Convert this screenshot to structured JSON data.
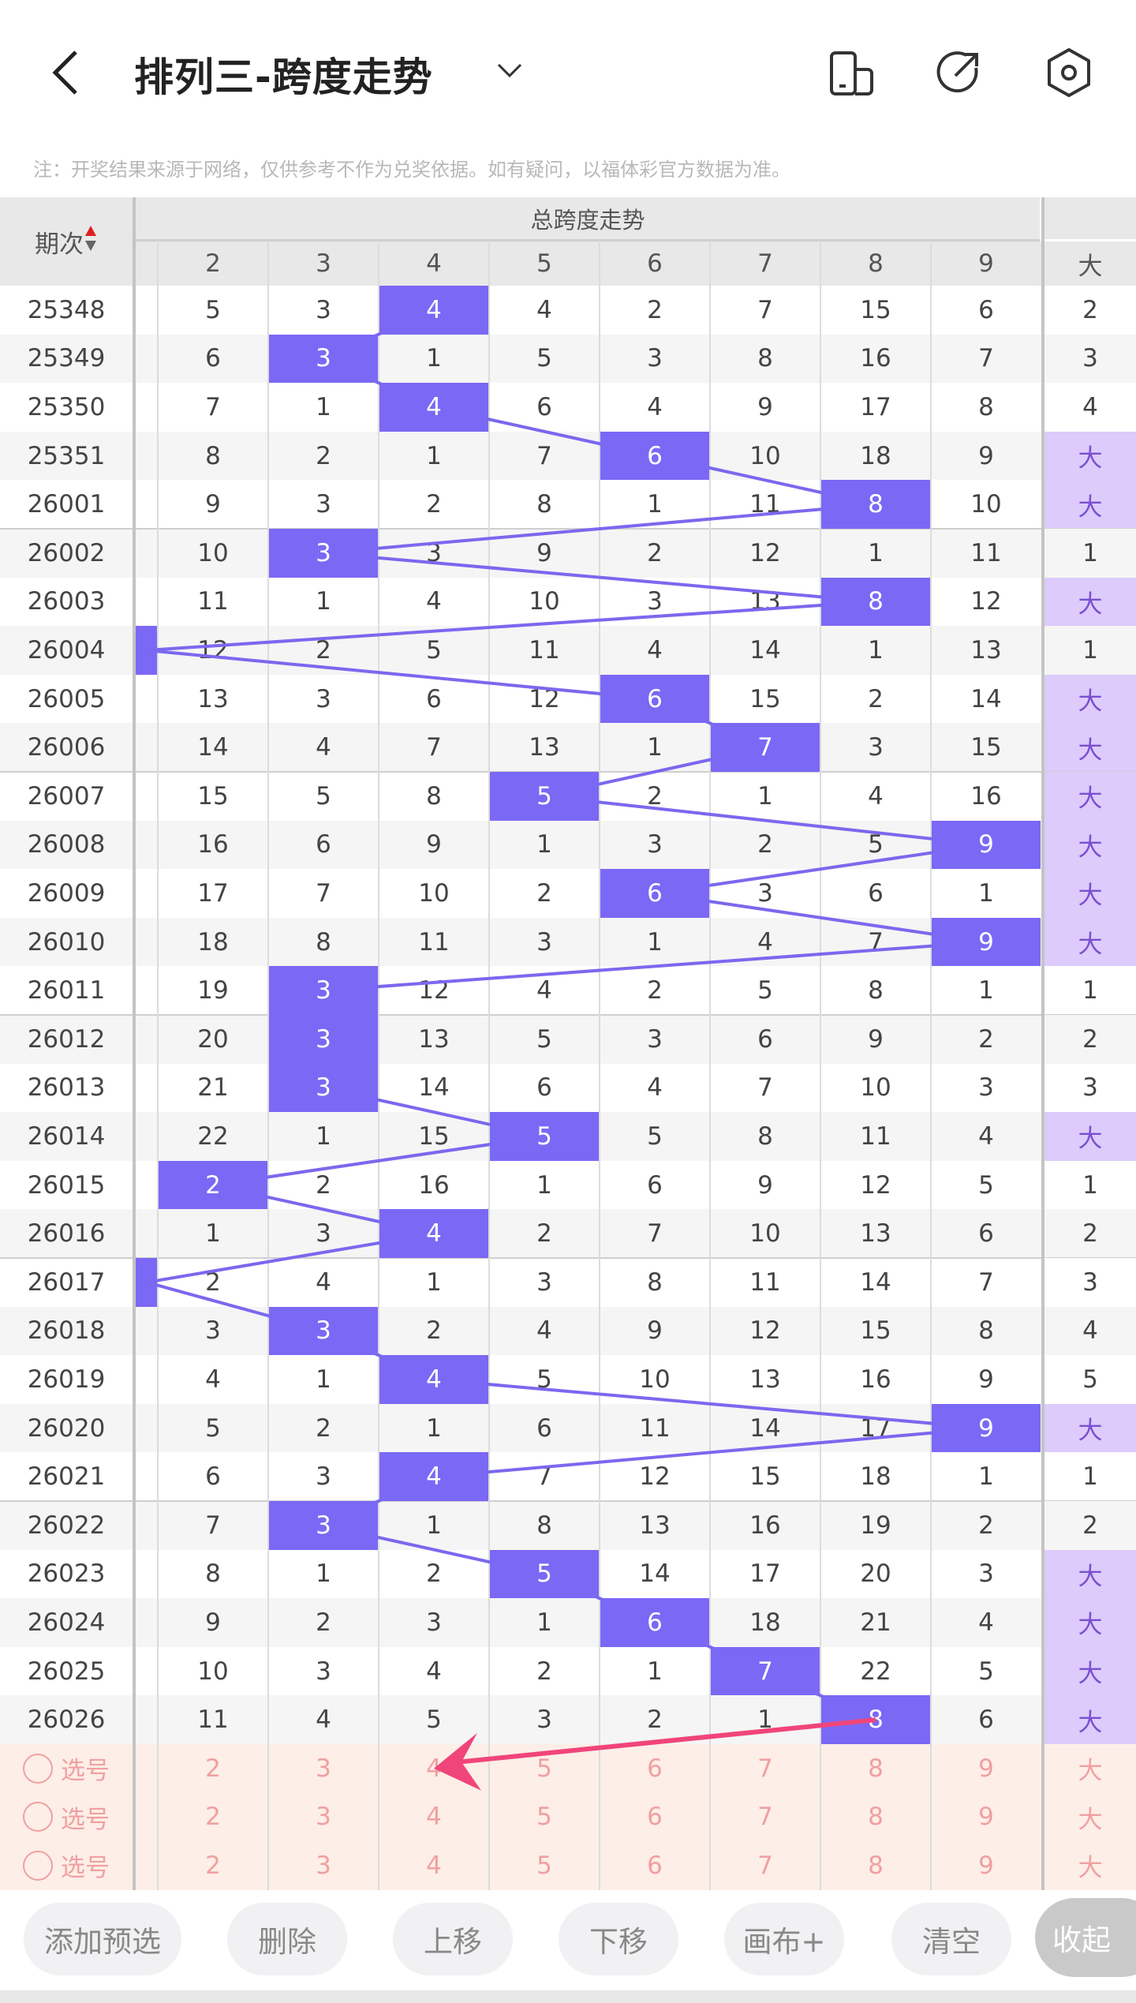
{
  "header": {
    "title": "排列三-跨度走势",
    "back_icon": "chevron-left-icon",
    "dropdown_icon": "chevron-down-icon",
    "icons": [
      "phone-layout-icon",
      "share-icon",
      "settings-icon"
    ]
  },
  "note": "注：开奖结果来源于网络，仅供参考不作为兑奖依据。如有疑问，以福体彩官方数据为准。",
  "table": {
    "issue_header": "期次",
    "group_header": "总跨度走势",
    "columns": [
      "2",
      "3",
      "4",
      "5",
      "6",
      "7",
      "8",
      "9"
    ],
    "last_column": "大",
    "colors": {
      "hit": "#7b68f5",
      "big_bg": "#dccbfb",
      "big_text": "#7b4fd0",
      "line": "#7b68ee",
      "arrow": "#f0457a"
    },
    "rows": [
      {
        "issue": "25348",
        "cells": [
          5,
          3,
          4,
          4,
          2,
          7,
          15,
          6
        ],
        "hit": 2,
        "last": "2"
      },
      {
        "issue": "25349",
        "cells": [
          6,
          3,
          1,
          5,
          3,
          8,
          16,
          7
        ],
        "hit": 1,
        "last": "3"
      },
      {
        "issue": "25350",
        "cells": [
          7,
          1,
          4,
          6,
          4,
          9,
          17,
          8
        ],
        "hit": 2,
        "last": "4"
      },
      {
        "issue": "25351",
        "cells": [
          8,
          2,
          1,
          7,
          6,
          10,
          18,
          9
        ],
        "hit": 4,
        "last": "大"
      },
      {
        "issue": "26001",
        "cells": [
          9,
          3,
          2,
          8,
          1,
          11,
          8,
          10
        ],
        "hit": 6,
        "last": "大"
      },
      {
        "issue": "26002",
        "cells": [
          10,
          3,
          3,
          9,
          2,
          12,
          1,
          11
        ],
        "hit": 1,
        "last": "1"
      },
      {
        "issue": "26003",
        "cells": [
          11,
          1,
          4,
          10,
          3,
          13,
          8,
          12
        ],
        "hit": 6,
        "last": "大"
      },
      {
        "issue": "26004",
        "cells": [
          12,
          2,
          5,
          11,
          4,
          14,
          1,
          13
        ],
        "hit": -1,
        "last": "1"
      },
      {
        "issue": "26005",
        "cells": [
          13,
          3,
          6,
          12,
          6,
          15,
          2,
          14
        ],
        "hit": 4,
        "last": "大"
      },
      {
        "issue": "26006",
        "cells": [
          14,
          4,
          7,
          13,
          1,
          7,
          3,
          15
        ],
        "hit": 5,
        "last": "大"
      },
      {
        "issue": "26007",
        "cells": [
          15,
          5,
          8,
          5,
          2,
          1,
          4,
          16
        ],
        "hit": 3,
        "last": "大"
      },
      {
        "issue": "26008",
        "cells": [
          16,
          6,
          9,
          1,
          3,
          2,
          5,
          9
        ],
        "hit": 7,
        "last": "大"
      },
      {
        "issue": "26009",
        "cells": [
          17,
          7,
          10,
          2,
          6,
          3,
          6,
          1
        ],
        "hit": 4,
        "last": "大"
      },
      {
        "issue": "26010",
        "cells": [
          18,
          8,
          11,
          3,
          1,
          4,
          7,
          9
        ],
        "hit": 7,
        "last": "大"
      },
      {
        "issue": "26011",
        "cells": [
          19,
          3,
          12,
          4,
          2,
          5,
          8,
          1
        ],
        "hit": 1,
        "last": "1"
      },
      {
        "issue": "26012",
        "cells": [
          20,
          3,
          13,
          5,
          3,
          6,
          9,
          2
        ],
        "hit": 1,
        "last": "2"
      },
      {
        "issue": "26013",
        "cells": [
          21,
          3,
          14,
          6,
          4,
          7,
          10,
          3
        ],
        "hit": 1,
        "last": "3"
      },
      {
        "issue": "26014",
        "cells": [
          22,
          1,
          15,
          5,
          5,
          8,
          11,
          4
        ],
        "hit": 3,
        "last": "大"
      },
      {
        "issue": "26015",
        "cells": [
          2,
          2,
          16,
          1,
          6,
          9,
          12,
          5
        ],
        "hit": 0,
        "last": "1"
      },
      {
        "issue": "26016",
        "cells": [
          1,
          3,
          4,
          2,
          7,
          10,
          13,
          6
        ],
        "hit": 2,
        "last": "2"
      },
      {
        "issue": "26017",
        "cells": [
          2,
          4,
          1,
          3,
          8,
          11,
          14,
          7
        ],
        "hit": -1,
        "last": "3"
      },
      {
        "issue": "26018",
        "cells": [
          3,
          3,
          2,
          4,
          9,
          12,
          15,
          8
        ],
        "hit": 1,
        "last": "4"
      },
      {
        "issue": "26019",
        "cells": [
          4,
          1,
          4,
          5,
          10,
          13,
          16,
          9
        ],
        "hit": 2,
        "last": "5"
      },
      {
        "issue": "26020",
        "cells": [
          5,
          2,
          1,
          6,
          11,
          14,
          17,
          9
        ],
        "hit": 7,
        "last": "大"
      },
      {
        "issue": "26021",
        "cells": [
          6,
          3,
          4,
          7,
          12,
          15,
          18,
          1
        ],
        "hit": 2,
        "last": "1"
      },
      {
        "issue": "26022",
        "cells": [
          7,
          3,
          1,
          8,
          13,
          16,
          19,
          2
        ],
        "hit": 1,
        "last": "2"
      },
      {
        "issue": "26023",
        "cells": [
          8,
          1,
          2,
          5,
          14,
          17,
          20,
          3
        ],
        "hit": 3,
        "last": "大"
      },
      {
        "issue": "26024",
        "cells": [
          9,
          2,
          3,
          1,
          6,
          18,
          21,
          4
        ],
        "hit": 4,
        "last": "大"
      },
      {
        "issue": "26025",
        "cells": [
          10,
          3,
          4,
          2,
          1,
          7,
          22,
          5
        ],
        "hit": 5,
        "last": "大"
      },
      {
        "issue": "26026",
        "cells": [
          11,
          4,
          5,
          3,
          2,
          1,
          8,
          6
        ],
        "hit": 6,
        "last": "大"
      }
    ],
    "select_rows": [
      {
        "label": "选号",
        "values": [
          "2",
          "3",
          "4",
          "5",
          "6",
          "7",
          "8",
          "9"
        ],
        "last": "大"
      },
      {
        "label": "选号",
        "values": [
          "2",
          "3",
          "4",
          "5",
          "6",
          "7",
          "8",
          "9"
        ],
        "last": "大"
      },
      {
        "label": "选号",
        "values": [
          "2",
          "3",
          "4",
          "5",
          "6",
          "7",
          "8",
          "9"
        ],
        "last": "大"
      }
    ]
  },
  "buttons": [
    "添加预选",
    "删除",
    "上移",
    "下移",
    "画布+",
    "清空"
  ],
  "collapse_button": "收起"
}
